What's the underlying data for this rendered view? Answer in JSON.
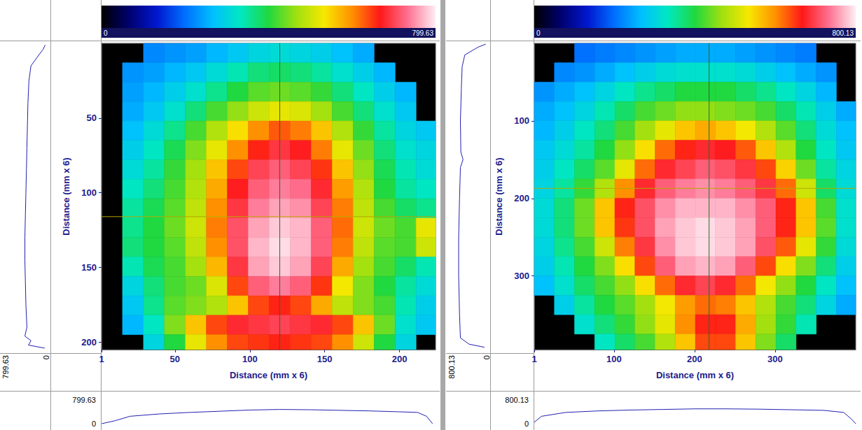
{
  "chart_data": [
    {
      "type": "heatmap",
      "x_label": "Distance (mm x 6)",
      "y_label": "Distance (mm x 6)",
      "xlim": [
        1,
        224
      ],
      "xticks": [
        1,
        50,
        100,
        150,
        200
      ],
      "ylim": [
        0,
        205
      ],
      "yticks": [
        50,
        100,
        150,
        200
      ],
      "x": [
        8,
        22,
        36,
        50,
        64,
        78,
        92,
        106,
        120,
        134,
        148,
        162,
        176,
        190,
        204,
        218
      ],
      "y": [
        6.5,
        19.5,
        32.5,
        45.5,
        58.5,
        71.5,
        84.5,
        97.5,
        110.5,
        123.5,
        136.5,
        149.5,
        162.5,
        175.5,
        188.5,
        201.5
      ],
      "cells": [
        [
          null,
          null,
          220,
          230,
          240,
          260,
          280,
          300,
          310,
          300,
          290,
          270,
          250,
          null,
          null,
          null
        ],
        [
          null,
          230,
          240,
          260,
          280,
          310,
          340,
          370,
          380,
          370,
          350,
          320,
          290,
          260,
          null,
          null
        ],
        [
          null,
          240,
          260,
          290,
          320,
          360,
          400,
          430,
          440,
          430,
          410,
          370,
          330,
          290,
          260,
          null
        ],
        [
          null,
          250,
          280,
          320,
          370,
          420,
          460,
          500,
          520,
          510,
          470,
          420,
          370,
          320,
          280,
          null
        ],
        [
          null,
          270,
          310,
          360,
          420,
          480,
          540,
          600,
          630,
          610,
          560,
          480,
          410,
          350,
          300,
          280
        ],
        [
          null,
          290,
          330,
          390,
          450,
          520,
          600,
          660,
          690,
          670,
          610,
          520,
          440,
          370,
          320,
          300
        ],
        [
          null,
          310,
          350,
          410,
          470,
          560,
          640,
          700,
          720,
          700,
          650,
          560,
          460,
          390,
          340,
          310
        ],
        [
          null,
          330,
          370,
          420,
          480,
          580,
          670,
          720,
          740,
          730,
          680,
          590,
          480,
          400,
          350,
          330
        ],
        [
          null,
          350,
          390,
          430,
          490,
          600,
          690,
          740,
          760,
          750,
          700,
          610,
          490,
          420,
          380,
          360
        ],
        [
          null,
          360,
          400,
          440,
          500,
          610,
          710,
          760,
          780,
          770,
          720,
          620,
          500,
          440,
          420,
          520
        ],
        [
          null,
          370,
          400,
          430,
          490,
          600,
          710,
          770,
          790,
          770,
          720,
          610,
          490,
          430,
          420,
          500
        ],
        [
          null,
          340,
          390,
          420,
          470,
          570,
          690,
          760,
          780,
          760,
          700,
          580,
          470,
          420,
          380,
          340
        ],
        [
          null,
          300,
          370,
          420,
          440,
          510,
          640,
          720,
          740,
          720,
          650,
          530,
          450,
          400,
          350,
          310
        ],
        [
          null,
          280,
          360,
          430,
          450,
          480,
          560,
          640,
          660,
          640,
          580,
          490,
          450,
          420,
          340,
          290
        ],
        [
          null,
          260,
          330,
          450,
          560,
          640,
          680,
          690,
          700,
          690,
          680,
          640,
          560,
          440,
          320,
          280
        ],
        [
          null,
          null,
          300,
          400,
          520,
          600,
          640,
          650,
          660,
          650,
          640,
          600,
          500,
          400,
          300,
          null
        ]
      ],
      "color_range": [
        0,
        799.63
      ],
      "color_ticks": [
        0,
        799.63
      ],
      "crosshair": {
        "x": 120,
        "y": 116
      },
      "profile_range": [
        0,
        799.63
      ],
      "profile_ticks": [
        0,
        799.63
      ],
      "profile_vertical": {
        "y": [
          1,
          4,
          8,
          15,
          25,
          40,
          55,
          70,
          85,
          100,
          115,
          130,
          145,
          160,
          175,
          190,
          196,
          199,
          202,
          204
        ],
        "values": [
          20,
          60,
          150,
          300,
          340,
          360,
          370,
          380,
          390,
          400,
          410,
          420,
          420,
          410,
          400,
          380,
          420,
          300,
          350,
          30
        ]
      },
      "profile_horizontal": {
        "x": [
          1,
          10,
          20,
          40,
          60,
          80,
          100,
          120,
          140,
          160,
          180,
          200,
          212,
          218,
          222
        ],
        "values": [
          0,
          100,
          250,
          330,
          380,
          420,
          460,
          480,
          470,
          450,
          430,
          400,
          380,
          250,
          0
        ]
      }
    },
    {
      "type": "heatmap",
      "x_label": "Distance (mm x 6)",
      "y_label": "Distance (mm x 6)",
      "xlim": [
        1,
        400
      ],
      "xticks": [
        1,
        100,
        200,
        300
      ],
      "ylim": [
        0,
        395
      ],
      "yticks": [
        100,
        200,
        300
      ],
      "x": [
        13.5,
        38.5,
        63.5,
        88.5,
        113.5,
        138.5,
        163.5,
        188.5,
        213.5,
        238.5,
        263.5,
        288.5,
        313.5,
        338.5,
        363.5,
        388.5
      ],
      "y": [
        12.5,
        37.5,
        62.5,
        87.5,
        112.5,
        137.5,
        162.5,
        187.5,
        212.5,
        237.5,
        262.5,
        287.5,
        312.5,
        337.5,
        362.5,
        387.5
      ],
      "cells": [
        [
          null,
          null,
          200,
          210,
          220,
          230,
          240,
          250,
          250,
          250,
          240,
          230,
          220,
          210,
          null,
          null
        ],
        [
          null,
          220,
          230,
          250,
          270,
          290,
          310,
          320,
          320,
          320,
          310,
          290,
          270,
          250,
          230,
          null
        ],
        [
          230,
          250,
          270,
          300,
          330,
          360,
          380,
          400,
          400,
          400,
          380,
          360,
          330,
          300,
          260,
          null
        ],
        [
          250,
          270,
          300,
          340,
          380,
          420,
          440,
          460,
          460,
          450,
          440,
          420,
          380,
          340,
          290,
          250
        ],
        [
          260,
          290,
          330,
          370,
          420,
          470,
          520,
          560,
          580,
          560,
          530,
          480,
          430,
          370,
          310,
          270
        ],
        [
          280,
          310,
          350,
          400,
          460,
          540,
          620,
          660,
          680,
          670,
          630,
          560,
          480,
          400,
          330,
          280
        ],
        [
          290,
          330,
          380,
          430,
          520,
          620,
          680,
          700,
          720,
          710,
          690,
          640,
          550,
          440,
          350,
          300
        ],
        [
          300,
          350,
          410,
          480,
          600,
          680,
          720,
          740,
          750,
          740,
          720,
          690,
          620,
          500,
          380,
          310
        ],
        [
          310,
          370,
          440,
          560,
          660,
          710,
          750,
          770,
          770,
          770,
          750,
          720,
          660,
          560,
          420,
          320
        ],
        [
          310,
          370,
          440,
          560,
          650,
          710,
          760,
          780,
          790,
          780,
          760,
          720,
          660,
          560,
          430,
          320
        ],
        [
          300,
          360,
          420,
          500,
          610,
          690,
          750,
          780,
          790,
          780,
          760,
          710,
          630,
          520,
          410,
          310
        ],
        [
          290,
          340,
          400,
          450,
          540,
          640,
          720,
          760,
          770,
          760,
          720,
          640,
          540,
          450,
          370,
          290
        ],
        [
          270,
          320,
          380,
          420,
          460,
          540,
          620,
          680,
          700,
          680,
          620,
          530,
          460,
          400,
          330,
          270
        ],
        [
          null,
          290,
          350,
          400,
          430,
          470,
          530,
          590,
          620,
          610,
          560,
          480,
          420,
          370,
          300,
          250
        ],
        [
          null,
          null,
          320,
          370,
          410,
          460,
          520,
          600,
          660,
          660,
          580,
          470,
          410,
          340,
          null,
          null
        ],
        [
          null,
          null,
          null,
          330,
          380,
          420,
          480,
          560,
          640,
          640,
          560,
          450,
          380,
          null,
          null,
          null
        ]
      ],
      "color_range": [
        0,
        800.13
      ],
      "color_ticks": [
        0,
        800.13
      ],
      "crosshair": {
        "x": 218,
        "y": 187
      },
      "profile_range": [
        0,
        800.13
      ],
      "profile_ticks": [
        0,
        800.13
      ],
      "profile_vertical": {
        "y": [
          1,
          5,
          15,
          30,
          60,
          100,
          140,
          150,
          160,
          200,
          250,
          300,
          350,
          380,
          388,
          392
        ],
        "values": [
          20,
          200,
          500,
          560,
          580,
          600,
          590,
          540,
          600,
          620,
          640,
          640,
          620,
          600,
          400,
          50
        ]
      },
      "profile_horizontal": {
        "x": [
          1,
          10,
          40,
          80,
          120,
          160,
          200,
          240,
          280,
          320,
          360,
          385,
          395,
          400
        ],
        "values": [
          50,
          250,
          380,
          430,
          460,
          480,
          500,
          500,
          490,
          470,
          450,
          380,
          150,
          0
        ]
      }
    }
  ]
}
